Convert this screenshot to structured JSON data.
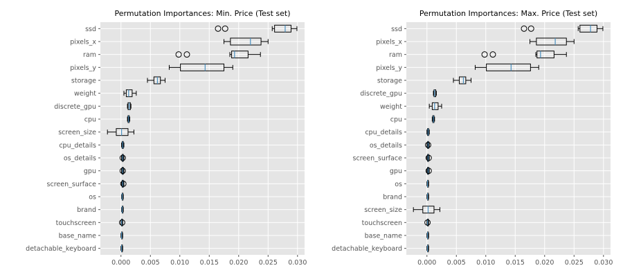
{
  "chart_data": [
    {
      "type": "boxplot",
      "orientation": "horizontal",
      "title": "Permutation Importances: Min. Price (Test set)",
      "xlabel": "",
      "ylabel": "",
      "xlim": [
        -0.0035,
        0.0312
      ],
      "xticks": [
        "0.000",
        "0.005",
        "0.010",
        "0.015",
        "0.020",
        "0.025",
        "0.030"
      ],
      "grid": true,
      "categories": [
        "ssd",
        "pixels_x",
        "ram",
        "pixels_y",
        "storage",
        "weight",
        "discrete_gpu",
        "cpu",
        "screen_size",
        "cpu_details",
        "os_details",
        "gpu",
        "screen_surface",
        "os",
        "brand",
        "touchscreen",
        "base_name",
        "detachable_keyboard"
      ],
      "boxes": [
        {
          "min": 0.0257,
          "q1": 0.0261,
          "median": 0.0279,
          "q3": 0.0289,
          "max": 0.0299,
          "outliers": [
            0.0165,
            0.0177
          ]
        },
        {
          "min": 0.0175,
          "q1": 0.0186,
          "median": 0.022,
          "q3": 0.0238,
          "max": 0.025,
          "outliers": []
        },
        {
          "min": 0.0185,
          "q1": 0.0188,
          "median": 0.0193,
          "q3": 0.0216,
          "max": 0.0237,
          "outliers": [
            0.0098,
            0.0112
          ]
        },
        {
          "min": 0.0082,
          "q1": 0.0101,
          "median": 0.0143,
          "q3": 0.0175,
          "max": 0.019,
          "outliers": []
        },
        {
          "min": 0.0045,
          "q1": 0.0056,
          "median": 0.0062,
          "q3": 0.0067,
          "max": 0.0075,
          "outliers": []
        },
        {
          "min": 0.0005,
          "q1": 0.0009,
          "median": 0.0013,
          "q3": 0.0019,
          "max": 0.0026,
          "outliers": []
        },
        {
          "min": 0.0011,
          "q1": 0.0012,
          "median": 0.0014,
          "q3": 0.0016,
          "max": 0.0017,
          "outliers": []
        },
        {
          "min": 0.0011,
          "q1": 0.0012,
          "median": 0.0013,
          "q3": 0.0014,
          "max": 0.0015,
          "outliers": []
        },
        {
          "min": -0.0023,
          "q1": -0.0008,
          "median": 0.0001,
          "q3": 0.0012,
          "max": 0.0022,
          "outliers": []
        },
        {
          "min": 0.0001,
          "q1": 0.0002,
          "median": 0.0003,
          "q3": 0.0004,
          "max": 0.0005,
          "outliers": []
        },
        {
          "min": 0.0001,
          "q1": 0.0002,
          "median": 0.0003,
          "q3": 0.0004,
          "max": 0.0005,
          "outliers": [
            0.0003
          ]
        },
        {
          "min": 0.0001,
          "q1": 0.0002,
          "median": 0.0003,
          "q3": 0.0004,
          "max": 0.0005,
          "outliers": [
            0.0003
          ]
        },
        {
          "min": 0.0001,
          "q1": 0.0002,
          "median": 0.0003,
          "q3": 0.0004,
          "max": 0.0005,
          "outliers": [
            0.0004
          ]
        },
        {
          "min": 0.0001,
          "q1": 0.0002,
          "median": 0.0002,
          "q3": 0.0003,
          "max": 0.0004,
          "outliers": []
        },
        {
          "min": 0.0001,
          "q1": 0.0002,
          "median": 0.0002,
          "q3": 0.0003,
          "max": 0.0004,
          "outliers": []
        },
        {
          "min": 0.0,
          "q1": 0.0001,
          "median": 0.0001,
          "q3": 0.0002,
          "max": 0.0003,
          "outliers": [
            0.0002
          ]
        },
        {
          "min": 0.0,
          "q1": 0.0001,
          "median": 0.0001,
          "q3": 0.0002,
          "max": 0.0003,
          "outliers": []
        },
        {
          "min": 0.0,
          "q1": 0.0001,
          "median": 0.0001,
          "q3": 0.0002,
          "max": 0.0003,
          "outliers": []
        }
      ]
    },
    {
      "type": "boxplot",
      "orientation": "horizontal",
      "title": "Permutation Importances: Max. Price (Test set)",
      "xlabel": "",
      "ylabel": "",
      "xlim": [
        -0.0035,
        0.0312
      ],
      "xticks": [
        "0.000",
        "0.005",
        "0.010",
        "0.015",
        "0.020",
        "0.025",
        "0.030"
      ],
      "grid": true,
      "categories": [
        "ssd",
        "pixels_x",
        "ram",
        "pixels_y",
        "storage",
        "discrete_gpu",
        "weight",
        "cpu",
        "cpu_details",
        "os_details",
        "screen_surface",
        "gpu",
        "os",
        "brand",
        "screen_size",
        "touchscreen",
        "base_name",
        "detachable_keyboard"
      ],
      "boxes": [
        {
          "min": 0.0257,
          "q1": 0.026,
          "median": 0.0278,
          "q3": 0.0289,
          "max": 0.0299,
          "outliers": [
            0.0165,
            0.0177
          ]
        },
        {
          "min": 0.0175,
          "q1": 0.0186,
          "median": 0.0218,
          "q3": 0.0237,
          "max": 0.025,
          "outliers": []
        },
        {
          "min": 0.0185,
          "q1": 0.0187,
          "median": 0.0193,
          "q3": 0.0216,
          "max": 0.0237,
          "outliers": [
            0.0098,
            0.0112
          ]
        },
        {
          "min": 0.0082,
          "q1": 0.0101,
          "median": 0.0143,
          "q3": 0.0176,
          "max": 0.019,
          "outliers": []
        },
        {
          "min": 0.0045,
          "q1": 0.0055,
          "median": 0.0062,
          "q3": 0.0066,
          "max": 0.0075,
          "outliers": []
        },
        {
          "min": 0.0011,
          "q1": 0.0012,
          "median": 0.0013,
          "q3": 0.0015,
          "max": 0.0016,
          "outliers": []
        },
        {
          "min": 0.0004,
          "q1": 0.0009,
          "median": 0.0013,
          "q3": 0.0019,
          "max": 0.0025,
          "outliers": []
        },
        {
          "min": 0.0009,
          "q1": 0.001,
          "median": 0.0011,
          "q3": 0.0012,
          "max": 0.0013,
          "outliers": []
        },
        {
          "min": 0.0,
          "q1": 0.0001,
          "median": 0.0002,
          "q3": 0.0003,
          "max": 0.0004,
          "outliers": []
        },
        {
          "min": 0.0,
          "q1": 0.0001,
          "median": 0.0002,
          "q3": 0.0003,
          "max": 0.0004,
          "outliers": [
            0.0002
          ]
        },
        {
          "min": 0.0,
          "q1": 0.0001,
          "median": 0.0002,
          "q3": 0.0003,
          "max": 0.0004,
          "outliers": [
            0.0003
          ]
        },
        {
          "min": 0.0,
          "q1": 0.0001,
          "median": 0.0002,
          "q3": 0.0003,
          "max": 0.0004,
          "outliers": [
            0.0003
          ]
        },
        {
          "min": 0.0,
          "q1": 0.0001,
          "median": 0.0001,
          "q3": 0.0002,
          "max": 0.0003,
          "outliers": []
        },
        {
          "min": 0.0,
          "q1": 0.0001,
          "median": 0.0001,
          "q3": 0.0002,
          "max": 0.0003,
          "outliers": []
        },
        {
          "min": -0.0023,
          "q1": -0.0007,
          "median": 0.0002,
          "q3": 0.0012,
          "max": 0.0022,
          "outliers": []
        },
        {
          "min": 0.0,
          "q1": 0.0001,
          "median": 0.0001,
          "q3": 0.0002,
          "max": 0.0003,
          "outliers": [
            0.0001
          ]
        },
        {
          "min": 0.0,
          "q1": 0.0001,
          "median": 0.0001,
          "q3": 0.0002,
          "max": 0.0003,
          "outliers": []
        },
        {
          "min": 0.0,
          "q1": 0.0001,
          "median": 0.0001,
          "q3": 0.0002,
          "max": 0.0003,
          "outliers": []
        }
      ]
    }
  ],
  "colors": {
    "panel_background": "#e5e5e5",
    "grid": "#ffffff",
    "box_edge": "#000000",
    "median": "#4a90c0",
    "tick_label": "#555555"
  }
}
